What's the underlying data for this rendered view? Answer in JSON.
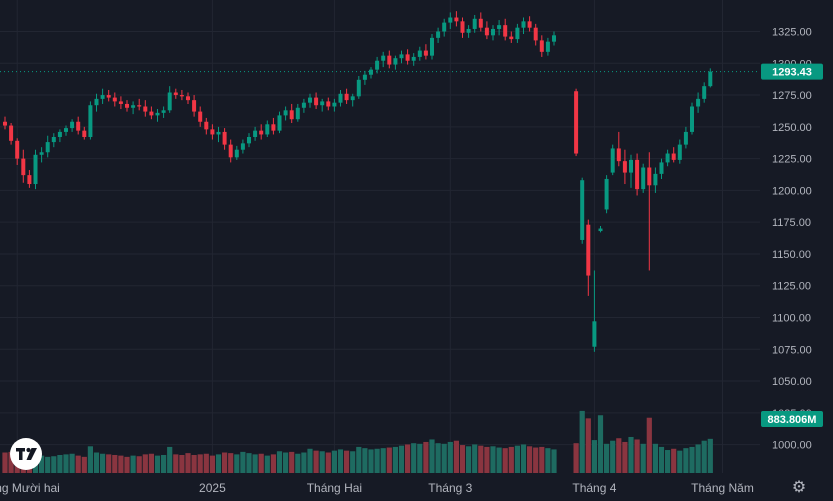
{
  "chart_data": {
    "type": "candlestick",
    "instrument": "",
    "price_axis": {
      "range": [
        970,
        1345
      ],
      "ticks": [
        1000,
        1025,
        1050,
        1075,
        1100,
        1125,
        1150,
        1175,
        1200,
        1225,
        1250,
        1275,
        1300,
        1325
      ],
      "tick_labels": [
        "1000.00",
        "1025.00",
        "1050.00",
        "1075.00",
        "1100.00",
        "1125.00",
        "1150.00",
        "1175.00",
        "1200.00",
        "1225.00",
        "1250.00",
        "1275.00",
        "1300.00",
        "1325.00"
      ]
    },
    "time_axis": {
      "labels": [
        {
          "text": "Tháng Mười hai",
          "bar": 2
        },
        {
          "text": "2025",
          "bar": 34
        },
        {
          "text": "Tháng Hai",
          "bar": 54
        },
        {
          "text": "Tháng 3",
          "bar": 73
        },
        {
          "text": "Tháng 4",
          "bar": 94
        },
        {
          "text": "Tháng Năm",
          "bar": 115
        }
      ]
    },
    "last_price": {
      "value": 1293.43,
      "label": "1293.43",
      "color": "#089981"
    },
    "last_volume": {
      "value": 883.806,
      "unit": "M",
      "label": "883.806M",
      "color": "#089981"
    },
    "colors": {
      "up": "#089981",
      "down": "#f23645",
      "up_volume": "#1e6b61",
      "down_volume": "#8a3540",
      "grid": "#222632",
      "text": "#b2b5be"
    },
    "candles": [
      [
        1254,
        1258,
        1248,
        1251
      ],
      [
        1251,
        1253,
        1236,
        1239
      ],
      [
        1239,
        1241,
        1220,
        1225
      ],
      [
        1225,
        1232,
        1206,
        1212
      ],
      [
        1212,
        1216,
        1202,
        1205
      ],
      [
        1205,
        1232,
        1201,
        1228
      ],
      [
        1228,
        1234,
        1222,
        1230
      ],
      [
        1230,
        1243,
        1226,
        1238
      ],
      [
        1238,
        1245,
        1234,
        1242
      ],
      [
        1242,
        1248,
        1238,
        1246
      ],
      [
        1246,
        1251,
        1243,
        1249
      ],
      [
        1249,
        1256,
        1246,
        1254
      ],
      [
        1254,
        1258,
        1244,
        1247
      ],
      [
        1247,
        1250,
        1240,
        1242
      ],
      [
        1242,
        1270,
        1240,
        1267
      ],
      [
        1267,
        1276,
        1262,
        1272
      ],
      [
        1272,
        1280,
        1268,
        1275
      ],
      [
        1275,
        1279,
        1270,
        1273
      ],
      [
        1273,
        1277,
        1266,
        1270
      ],
      [
        1270,
        1274,
        1264,
        1268
      ],
      [
        1268,
        1271,
        1262,
        1265
      ],
      [
        1265,
        1270,
        1260,
        1267
      ],
      [
        1267,
        1272,
        1263,
        1266
      ],
      [
        1266,
        1271,
        1258,
        1262
      ],
      [
        1262,
        1266,
        1256,
        1259
      ],
      [
        1259,
        1264,
        1254,
        1261
      ],
      [
        1261,
        1266,
        1257,
        1263
      ],
      [
        1263,
        1282,
        1261,
        1277
      ],
      [
        1277,
        1280,
        1272,
        1275
      ],
      [
        1275,
        1279,
        1271,
        1274
      ],
      [
        1274,
        1277,
        1268,
        1271
      ],
      [
        1271,
        1275,
        1258,
        1262
      ],
      [
        1262,
        1266,
        1250,
        1254
      ],
      [
        1254,
        1257,
        1244,
        1248
      ],
      [
        1248,
        1252,
        1240,
        1244
      ],
      [
        1244,
        1250,
        1238,
        1246
      ],
      [
        1246,
        1249,
        1232,
        1236
      ],
      [
        1236,
        1240,
        1222,
        1226
      ],
      [
        1226,
        1235,
        1224,
        1232
      ],
      [
        1232,
        1240,
        1229,
        1237
      ],
      [
        1237,
        1245,
        1234,
        1242
      ],
      [
        1242,
        1250,
        1239,
        1247
      ],
      [
        1247,
        1252,
        1240,
        1244
      ],
      [
        1244,
        1255,
        1242,
        1252
      ],
      [
        1252,
        1257,
        1244,
        1247
      ],
      [
        1247,
        1262,
        1245,
        1259
      ],
      [
        1259,
        1266,
        1255,
        1263
      ],
      [
        1263,
        1268,
        1253,
        1256
      ],
      [
        1256,
        1268,
        1254,
        1265
      ],
      [
        1265,
        1272,
        1261,
        1269
      ],
      [
        1269,
        1276,
        1265,
        1273
      ],
      [
        1273,
        1277,
        1264,
        1267
      ],
      [
        1267,
        1272,
        1262,
        1270
      ],
      [
        1270,
        1273,
        1263,
        1266
      ],
      [
        1266,
        1272,
        1262,
        1269
      ],
      [
        1269,
        1279,
        1266,
        1276
      ],
      [
        1276,
        1280,
        1268,
        1271
      ],
      [
        1271,
        1276,
        1266,
        1274
      ],
      [
        1274,
        1290,
        1272,
        1287
      ],
      [
        1287,
        1294,
        1283,
        1291
      ],
      [
        1291,
        1297,
        1288,
        1295
      ],
      [
        1295,
        1305,
        1292,
        1302
      ],
      [
        1302,
        1309,
        1297,
        1306
      ],
      [
        1306,
        1310,
        1296,
        1299
      ],
      [
        1299,
        1306,
        1295,
        1304
      ],
      [
        1304,
        1310,
        1300,
        1307
      ],
      [
        1307,
        1311,
        1299,
        1302
      ],
      [
        1302,
        1308,
        1298,
        1305
      ],
      [
        1305,
        1313,
        1302,
        1310
      ],
      [
        1310,
        1315,
        1303,
        1306
      ],
      [
        1306,
        1323,
        1303,
        1320
      ],
      [
        1320,
        1328,
        1316,
        1325
      ],
      [
        1325,
        1335,
        1321,
        1332
      ],
      [
        1332,
        1340,
        1327,
        1336
      ],
      [
        1336,
        1341,
        1329,
        1333
      ],
      [
        1333,
        1336,
        1320,
        1324
      ],
      [
        1324,
        1330,
        1320,
        1327
      ],
      [
        1327,
        1338,
        1324,
        1335
      ],
      [
        1335,
        1340,
        1325,
        1328
      ],
      [
        1328,
        1333,
        1319,
        1322
      ],
      [
        1322,
        1330,
        1318,
        1327
      ],
      [
        1327,
        1334,
        1322,
        1330
      ],
      [
        1330,
        1335,
        1318,
        1321
      ],
      [
        1321,
        1325,
        1316,
        1319
      ],
      [
        1319,
        1331,
        1316,
        1328
      ],
      [
        1328,
        1336,
        1323,
        1333
      ],
      [
        1333,
        1337,
        1325,
        1328
      ],
      [
        1328,
        1331,
        1314,
        1318
      ],
      [
        1318,
        1322,
        1305,
        1309
      ],
      [
        1309,
        1320,
        1306,
        1317
      ],
      [
        1317,
        1325,
        1314,
        1322
      ],
      [
        1278,
        1280,
        1227,
        1229
      ],
      [
        1161,
        1210,
        1158,
        1208
      ],
      [
        1173,
        1177,
        1117,
        1133
      ],
      [
        1077,
        1137,
        1073,
        1097
      ],
      [
        1168,
        1172,
        1167,
        1170
      ],
      [
        1185,
        1212,
        1182,
        1209
      ],
      [
        1214,
        1236,
        1212,
        1233
      ],
      [
        1233,
        1246,
        1219,
        1223
      ],
      [
        1223,
        1232,
        1205,
        1214
      ],
      [
        1214,
        1228,
        1202,
        1224
      ],
      [
        1224,
        1229,
        1196,
        1201
      ],
      [
        1201,
        1221,
        1198,
        1218
      ],
      [
        1218,
        1230,
        1137,
        1204
      ],
      [
        1204,
        1218,
        1198,
        1213
      ],
      [
        1213,
        1225,
        1209,
        1222
      ],
      [
        1222,
        1232,
        1219,
        1229
      ],
      [
        1229,
        1234,
        1222,
        1224
      ],
      [
        1224,
        1240,
        1221,
        1236
      ],
      [
        1236,
        1250,
        1233,
        1246
      ],
      [
        1246,
        1269,
        1244,
        1266
      ],
      [
        1266,
        1277,
        1261,
        1272
      ],
      [
        1272,
        1285,
        1269,
        1282
      ],
      [
        1282,
        1296,
        1281,
        1293.43
      ]
    ],
    "gap_after_index": 90,
    "volumes": [
      330,
      340,
      230,
      250,
      220,
      290,
      280,
      260,
      270,
      290,
      300,
      310,
      280,
      260,
      430,
      330,
      310,
      300,
      290,
      280,
      260,
      280,
      270,
      300,
      310,
      280,
      290,
      420,
      300,
      290,
      320,
      290,
      300,
      310,
      280,
      300,
      330,
      320,
      300,
      340,
      320,
      300,
      310,
      280,
      300,
      350,
      330,
      340,
      310,
      330,
      390,
      360,
      350,
      330,
      360,
      380,
      360,
      350,
      420,
      400,
      380,
      390,
      400,
      410,
      420,
      440,
      460,
      480,
      470,
      500,
      540,
      480,
      470,
      500,
      520,
      450,
      430,
      460,
      440,
      420,
      430,
      410,
      400,
      420,
      440,
      460,
      430,
      410,
      420,
      400,
      380,
      480,
      1000,
      880,
      530,
      930,
      470,
      520,
      560,
      500,
      580,
      540,
      470,
      890,
      470,
      420,
      370,
      390,
      360,
      400,
      420,
      460,
      520,
      550
    ],
    "volume_scale": 1900
  }
}
